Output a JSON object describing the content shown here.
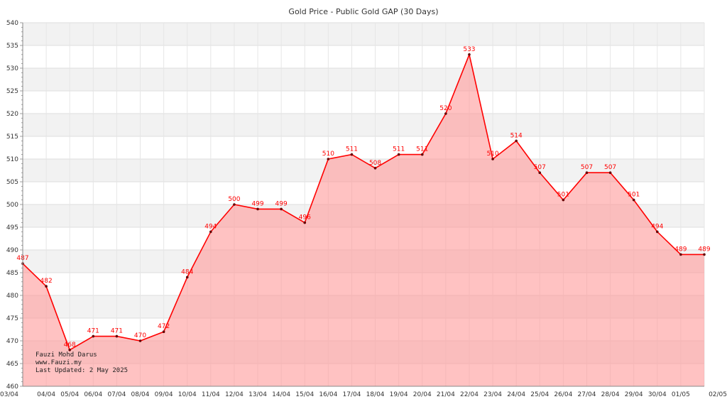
{
  "chart_data": {
    "type": "area",
    "title": "Gold Price - Public Gold GAP (30 Days)",
    "xlabel": "",
    "ylabel": "",
    "categories": [
      "03/04",
      "04/04",
      "05/04",
      "06/04",
      "07/04",
      "08/04",
      "09/04",
      "10/04",
      "11/04",
      "12/04",
      "13/04",
      "14/04",
      "15/04",
      "16/04",
      "17/04",
      "18/04",
      "19/04",
      "20/04",
      "21/04",
      "22/04",
      "23/04",
      "24/04",
      "25/04",
      "26/04",
      "27/04",
      "28/04",
      "29/04",
      "30/04",
      "01/05",
      "02/05"
    ],
    "series": [
      {
        "values": [
          487,
          482,
          468,
          471,
          471,
          470,
          472,
          484,
          494,
          500,
          499,
          499,
          496,
          510,
          511,
          508,
          511,
          511,
          520,
          533,
          510,
          514,
          507,
          501,
          507,
          507,
          501,
          494,
          489,
          489
        ]
      }
    ],
    "ylim": [
      460,
      540
    ],
    "yticks": [
      460,
      465,
      470,
      475,
      480,
      485,
      490,
      495,
      500,
      505,
      510,
      515,
      520,
      525,
      530,
      535,
      540
    ],
    "grid": true,
    "line_color": "#ff0000",
    "fill_color": "#ff9999",
    "band_color": "#f2f2f2",
    "label_color": "#ff0000"
  },
  "credit": {
    "author": "Fauzi Mohd Darus",
    "website": "www.Fauzi.my",
    "updated": "Last Updated: 2 May 2025"
  }
}
